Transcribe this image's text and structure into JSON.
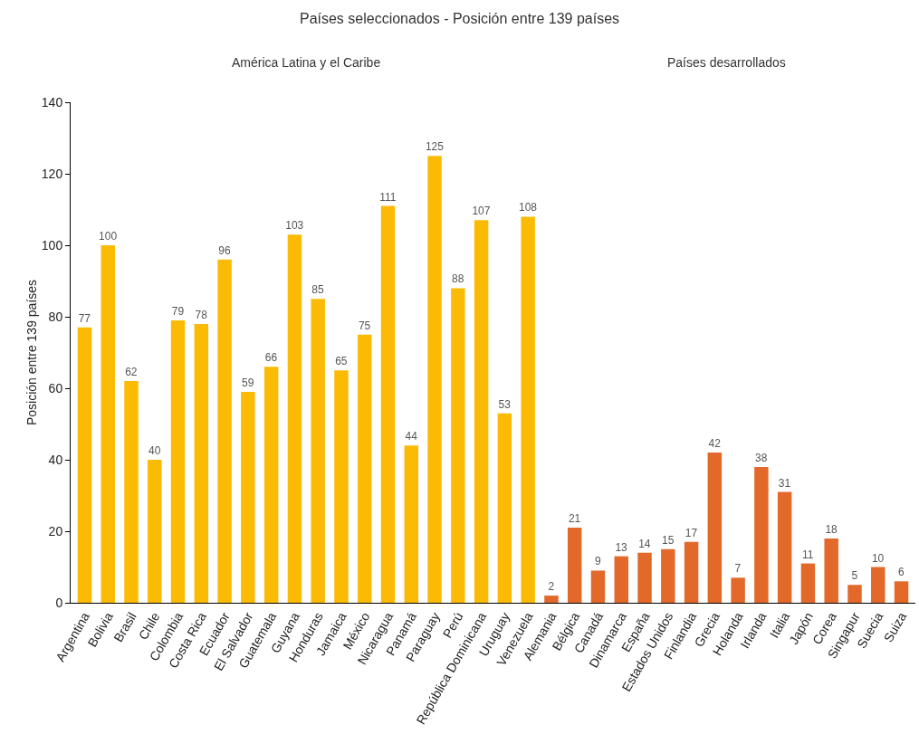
{
  "chart_data": {
    "type": "bar",
    "title": "Países seleccionados - Posición entre 139 países",
    "ylabel": "Posición entre 139 países",
    "annotations": [
      "América Latina y el Caribe",
      "Países desarrollados"
    ],
    "categories": [
      "Argentina",
      "Bolivia",
      "Brasil",
      "Chile",
      "Colombia",
      "Costa Rica",
      "Ecuador",
      "El Salvador",
      "Guatemala",
      "Guyana",
      "Honduras",
      "Jamaica",
      "México",
      "Nicaragua",
      "Panamá",
      "Paraguay",
      "Perú",
      "República Dominicana",
      "Uruguay",
      "Venezuela",
      "Alemania",
      "Bélgica",
      "Canadá",
      "Dinamarca",
      "España",
      "Estados Unidos",
      "Finlandia",
      "Grecia",
      "Holanda",
      "Irlanda",
      "Italia",
      "Japón",
      "Corea",
      "Singapur",
      "Suecia",
      "Suiza"
    ],
    "values": [
      77,
      100,
      62,
      40,
      79,
      78,
      96,
      59,
      66,
      103,
      85,
      65,
      75,
      111,
      44,
      125,
      88,
      107,
      53,
      108,
      2,
      21,
      9,
      13,
      14,
      15,
      17,
      42,
      7,
      38,
      31,
      11,
      18,
      5,
      10,
      6
    ],
    "colors": [
      "#fbbb05",
      "#fbbb05",
      "#fbbb05",
      "#fbbb05",
      "#fbbb05",
      "#fbbb05",
      "#fbbb05",
      "#fbbb05",
      "#fbbb05",
      "#fbbb05",
      "#fbbb05",
      "#fbbb05",
      "#fbbb05",
      "#fbbb05",
      "#fbbb05",
      "#fbbb05",
      "#fbbb05",
      "#fbbb05",
      "#fbbb05",
      "#fbbb05",
      "#e3692b",
      "#e3692b",
      "#e3692b",
      "#e3692b",
      "#e3692b",
      "#e3692b",
      "#e3692b",
      "#e3692b",
      "#e3692b",
      "#e3692b",
      "#e3692b",
      "#e3692b",
      "#e3692b",
      "#e3692b",
      "#e3692b",
      "#e3692b"
    ],
    "ylim": [
      0,
      140
    ],
    "yticks": [
      0,
      20,
      40,
      60,
      80,
      100,
      120,
      140
    ],
    "grid": false,
    "data_labels": true
  }
}
